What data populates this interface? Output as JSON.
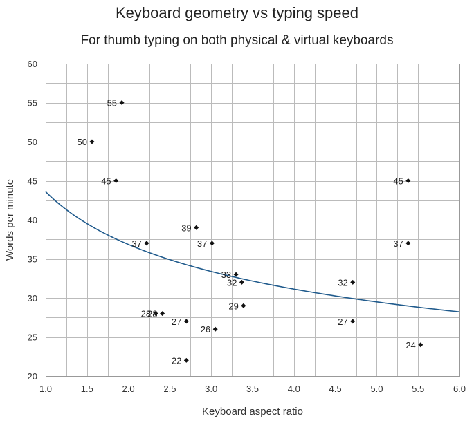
{
  "chart_data": {
    "type": "scatter",
    "title": "Keyboard geometry vs typing speed",
    "subtitle": "For thumb typing on both physical & virtual keyboards",
    "xlabel": "Keyboard aspect ratio",
    "ylabel": "Words per minute",
    "xlim": [
      1.0,
      6.0
    ],
    "ylim": [
      20,
      60
    ],
    "xticks": [
      "1.0",
      "1.5",
      "2.0",
      "2.5",
      "3.0",
      "3.5",
      "4.0",
      "4.5",
      "5.0",
      "5.5",
      "6.0"
    ],
    "yticks": [
      "20",
      "25",
      "30",
      "35",
      "40",
      "45",
      "50",
      "55",
      "60"
    ],
    "x_minor_step": 0.25,
    "y_minor_step": 2.5,
    "grid": true,
    "legend": "none",
    "colors": {
      "point": "#111111",
      "trendline": "#1f5a8c",
      "grid": "#bbbbbb",
      "frame": "#999999"
    },
    "points": [
      {
        "x": 1.92,
        "y": 55,
        "label": "55"
      },
      {
        "x": 1.56,
        "y": 50,
        "label": "50"
      },
      {
        "x": 1.85,
        "y": 45,
        "label": "45"
      },
      {
        "x": 5.38,
        "y": 45,
        "label": "45"
      },
      {
        "x": 2.82,
        "y": 39,
        "label": "39"
      },
      {
        "x": 2.22,
        "y": 37,
        "label": "37"
      },
      {
        "x": 3.01,
        "y": 37,
        "label": "37"
      },
      {
        "x": 5.38,
        "y": 37,
        "label": "37"
      },
      {
        "x": 3.3,
        "y": 33,
        "label": "33"
      },
      {
        "x": 3.37,
        "y": 32,
        "label": "32"
      },
      {
        "x": 4.71,
        "y": 32,
        "label": "32"
      },
      {
        "x": 3.39,
        "y": 29,
        "label": "29"
      },
      {
        "x": 2.33,
        "y": 28,
        "label": "28"
      },
      {
        "x": 2.41,
        "y": 28,
        "label": "28"
      },
      {
        "x": 2.7,
        "y": 27,
        "label": "27"
      },
      {
        "x": 4.71,
        "y": 27,
        "label": "27"
      },
      {
        "x": 3.05,
        "y": 26,
        "label": "26"
      },
      {
        "x": 5.53,
        "y": 24,
        "label": "24"
      },
      {
        "x": 2.7,
        "y": 22,
        "label": "22"
      }
    ],
    "trendline": {
      "type": "power",
      "a": 43.6,
      "b": -0.243
    }
  }
}
